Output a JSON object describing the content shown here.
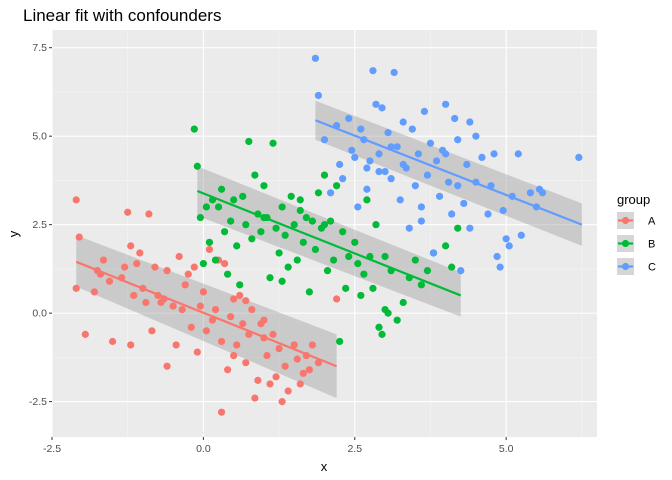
{
  "chart_data": {
    "type": "scatter",
    "title": "Linear fit with confounders",
    "xlabel": "x",
    "ylabel": "y",
    "xlim": [
      -2.5,
      6.5
    ],
    "ylim": [
      -3.5,
      8.0
    ],
    "xticks": [
      -2.5,
      0.0,
      2.5,
      5.0
    ],
    "xtick_labels": [
      "-2.5",
      "0.0",
      "2.5",
      "5.0"
    ],
    "yticks": [
      -2.5,
      0.0,
      2.5,
      5.0,
      7.5
    ],
    "ytick_labels": [
      "-2.5",
      "0.0",
      "2.5",
      "5.0",
      "7.5"
    ],
    "grid": true,
    "legend": {
      "title": "group",
      "position": "right"
    },
    "series": [
      {
        "name": "A",
        "color": "#F8766D",
        "fit": {
          "x": [
            -2.1,
            2.2
          ],
          "y": [
            1.45,
            -1.5
          ],
          "se_low": [
            0.75,
            -2.4
          ],
          "se_high": [
            2.2,
            -0.6
          ]
        },
        "points": [
          [
            -2.1,
            3.2
          ],
          [
            -2.05,
            2.15
          ],
          [
            -2.1,
            0.7
          ],
          [
            -1.95,
            -0.6
          ],
          [
            -1.8,
            0.6
          ],
          [
            -1.75,
            1.2
          ],
          [
            -1.7,
            1.1
          ],
          [
            -1.65,
            1.5
          ],
          [
            -1.55,
            0.9
          ],
          [
            -1.5,
            -0.8
          ],
          [
            -1.35,
            1.0
          ],
          [
            -1.3,
            1.3
          ],
          [
            -1.25,
            2.85
          ],
          [
            -1.2,
            1.9
          ],
          [
            -1.15,
            0.5
          ],
          [
            -1.1,
            1.4
          ],
          [
            -1.05,
            1.7
          ],
          [
            -1.0,
            0.7
          ],
          [
            -0.95,
            0.3
          ],
          [
            -0.9,
            2.8
          ],
          [
            -0.85,
            -0.5
          ],
          [
            -0.8,
            1.3
          ],
          [
            -0.75,
            0.5
          ],
          [
            -0.7,
            0.3
          ],
          [
            -0.65,
            0.4
          ],
          [
            -0.6,
            1.2
          ],
          [
            -0.5,
            0.2
          ],
          [
            -0.45,
            -0.9
          ],
          [
            -0.4,
            1.6
          ],
          [
            -0.35,
            0.1
          ],
          [
            -0.3,
            0.8
          ],
          [
            -0.25,
            1.1
          ],
          [
            -0.2,
            -0.4
          ],
          [
            -0.15,
            1.3
          ],
          [
            -0.1,
            -1.1
          ],
          [
            -0.05,
            0.2
          ],
          [
            0.0,
            0.6
          ],
          [
            0.05,
            -0.5
          ],
          [
            0.1,
            1.8
          ],
          [
            0.15,
            -0.2
          ],
          [
            0.2,
            0.1
          ],
          [
            0.25,
            1.5
          ],
          [
            0.3,
            -0.8
          ],
          [
            0.35,
            1.4
          ],
          [
            0.4,
            -1.6
          ],
          [
            0.45,
            -0.1
          ],
          [
            0.5,
            0.4
          ],
          [
            0.55,
            -0.9
          ],
          [
            0.6,
            0.5
          ],
          [
            0.65,
            -0.3
          ],
          [
            0.7,
            -1.4
          ],
          [
            0.75,
            -0.6
          ],
          [
            0.8,
            0.1
          ],
          [
            0.85,
            -2.4
          ],
          [
            0.9,
            -1.9
          ],
          [
            0.95,
            -0.3
          ],
          [
            1.0,
            -0.7
          ],
          [
            1.05,
            -1.2
          ],
          [
            1.1,
            -2.0
          ],
          [
            1.15,
            -0.6
          ],
          [
            1.2,
            -1.8
          ],
          [
            1.25,
            -1.0
          ],
          [
            1.3,
            -2.5
          ],
          [
            1.35,
            -1.5
          ],
          [
            1.4,
            -2.2
          ],
          [
            1.5,
            -0.9
          ],
          [
            1.55,
            -1.3
          ],
          [
            1.6,
            -2.0
          ],
          [
            1.65,
            -1.7
          ],
          [
            1.7,
            -1.2
          ],
          [
            1.75,
            -1.6
          ],
          [
            1.8,
            -0.9
          ],
          [
            1.9,
            -1.4
          ],
          [
            2.2,
            0.4
          ],
          [
            0.3,
            -2.8
          ],
          [
            -0.6,
            -1.5
          ],
          [
            -1.2,
            -0.9
          ],
          [
            0.5,
            -1.2
          ],
          [
            0.7,
            0.35
          ],
          [
            1.0,
            -0.2
          ]
        ]
      },
      {
        "name": "B",
        "color": "#00BA38",
        "fit": {
          "x": [
            -0.1,
            4.25
          ],
          "y": [
            3.45,
            0.5
          ],
          "se_low": [
            2.75,
            -0.1
          ],
          "se_high": [
            4.15,
            1.15
          ]
        },
        "points": [
          [
            -0.15,
            5.2
          ],
          [
            -0.1,
            4.15
          ],
          [
            -0.05,
            2.7
          ],
          [
            0.0,
            1.4
          ],
          [
            0.05,
            3.0
          ],
          [
            0.1,
            2.0
          ],
          [
            0.15,
            3.2
          ],
          [
            0.2,
            1.5
          ],
          [
            0.25,
            3.0
          ],
          [
            0.3,
            3.5
          ],
          [
            0.35,
            2.3
          ],
          [
            0.4,
            1.1
          ],
          [
            0.45,
            2.6
          ],
          [
            0.5,
            3.2
          ],
          [
            0.55,
            1.9
          ],
          [
            0.6,
            0.8
          ],
          [
            0.65,
            3.3
          ],
          [
            0.7,
            2.5
          ],
          [
            0.75,
            4.85
          ],
          [
            0.8,
            2.1
          ],
          [
            0.85,
            3.9
          ],
          [
            0.9,
            2.8
          ],
          [
            0.95,
            2.3
          ],
          [
            1.0,
            3.6
          ],
          [
            1.05,
            2.7
          ],
          [
            1.1,
            1.0
          ],
          [
            1.15,
            4.8
          ],
          [
            1.2,
            2.4
          ],
          [
            1.25,
            1.7
          ],
          [
            1.3,
            3.0
          ],
          [
            1.35,
            2.2
          ],
          [
            1.4,
            1.3
          ],
          [
            1.45,
            3.3
          ],
          [
            1.5,
            2.5
          ],
          [
            1.55,
            1.5
          ],
          [
            1.6,
            3.2
          ],
          [
            1.65,
            2.0
          ],
          [
            1.7,
            2.7
          ],
          [
            1.75,
            0.6
          ],
          [
            1.8,
            2.6
          ],
          [
            1.85,
            1.8
          ],
          [
            1.9,
            3.4
          ],
          [
            1.95,
            2.4
          ],
          [
            2.0,
            3.9
          ],
          [
            2.05,
            1.2
          ],
          [
            2.1,
            2.6
          ],
          [
            2.15,
            1.5
          ],
          [
            2.2,
            3.6
          ],
          [
            2.25,
            -0.8
          ],
          [
            2.3,
            2.3
          ],
          [
            2.35,
            0.7
          ],
          [
            2.4,
            1.6
          ],
          [
            2.5,
            2.0
          ],
          [
            2.55,
            1.4
          ],
          [
            2.6,
            0.5
          ],
          [
            2.65,
            1.1
          ],
          [
            2.7,
            3.2
          ],
          [
            2.75,
            1.6
          ],
          [
            2.8,
            0.7
          ],
          [
            2.85,
            2.5
          ],
          [
            2.9,
            -0.4
          ],
          [
            2.95,
            -0.6
          ],
          [
            3.0,
            0.1
          ],
          [
            3.05,
            0.0
          ],
          [
            3.1,
            1.2
          ],
          [
            3.2,
            -0.2
          ],
          [
            3.3,
            0.3
          ],
          [
            3.4,
            1.0
          ],
          [
            3.5,
            1.5
          ],
          [
            3.6,
            0.8
          ],
          [
            3.7,
            1.2
          ],
          [
            3.8,
            1.7
          ],
          [
            4.0,
            1.9
          ],
          [
            4.1,
            1.3
          ],
          [
            4.2,
            2.4
          ],
          [
            1.0,
            2.7
          ],
          [
            1.3,
            0.9
          ],
          [
            2.0,
            2.5
          ],
          [
            3.0,
            1.6
          ],
          [
            1.6,
            2.9
          ]
        ]
      },
      {
        "name": "C",
        "color": "#619CFF",
        "fit": {
          "x": [
            1.85,
            6.25
          ],
          "y": [
            5.45,
            2.5
          ],
          "se_low": [
            4.9,
            1.9
          ],
          "se_high": [
            6.0,
            3.1
          ]
        },
        "points": [
          [
            1.85,
            7.2
          ],
          [
            1.9,
            6.15
          ],
          [
            2.0,
            4.9
          ],
          [
            2.1,
            3.4
          ],
          [
            2.2,
            5.3
          ],
          [
            2.25,
            4.2
          ],
          [
            2.3,
            3.8
          ],
          [
            2.4,
            5.5
          ],
          [
            2.45,
            4.6
          ],
          [
            2.5,
            4.4
          ],
          [
            2.55,
            3.0
          ],
          [
            2.6,
            5.2
          ],
          [
            2.65,
            4.9
          ],
          [
            2.7,
            3.5
          ],
          [
            2.75,
            4.3
          ],
          [
            2.8,
            6.85
          ],
          [
            2.85,
            5.9
          ],
          [
            2.9,
            4.5
          ],
          [
            2.95,
            5.8
          ],
          [
            3.0,
            4.0
          ],
          [
            3.05,
            5.1
          ],
          [
            3.1,
            3.8
          ],
          [
            3.15,
            6.8
          ],
          [
            3.2,
            4.7
          ],
          [
            3.25,
            3.2
          ],
          [
            3.3,
            5.4
          ],
          [
            3.35,
            4.1
          ],
          [
            3.4,
            2.4
          ],
          [
            3.45,
            5.2
          ],
          [
            3.5,
            3.6
          ],
          [
            3.55,
            4.5
          ],
          [
            3.6,
            2.6
          ],
          [
            3.65,
            5.7
          ],
          [
            3.7,
            3.9
          ],
          [
            3.75,
            4.8
          ],
          [
            3.8,
            1.7
          ],
          [
            3.85,
            4.3
          ],
          [
            3.9,
            3.3
          ],
          [
            3.95,
            4.6
          ],
          [
            4.0,
            5.9
          ],
          [
            4.05,
            3.7
          ],
          [
            4.1,
            2.8
          ],
          [
            4.15,
            5.5
          ],
          [
            4.2,
            4.9
          ],
          [
            4.25,
            1.2
          ],
          [
            4.3,
            3.1
          ],
          [
            4.35,
            4.2
          ],
          [
            4.4,
            2.4
          ],
          [
            4.5,
            3.7
          ],
          [
            4.6,
            4.4
          ],
          [
            4.7,
            2.8
          ],
          [
            4.75,
            3.6
          ],
          [
            4.8,
            4.5
          ],
          [
            4.85,
            1.6
          ],
          [
            4.9,
            1.3
          ],
          [
            4.95,
            2.9
          ],
          [
            5.0,
            2.1
          ],
          [
            5.05,
            1.9
          ],
          [
            5.1,
            3.3
          ],
          [
            5.2,
            4.5
          ],
          [
            5.25,
            2.2
          ],
          [
            5.4,
            3.4
          ],
          [
            5.5,
            3.0
          ],
          [
            5.55,
            3.5
          ],
          [
            5.6,
            3.4
          ],
          [
            6.2,
            4.4
          ],
          [
            4.4,
            5.4
          ],
          [
            3.3,
            4.2
          ],
          [
            2.9,
            4.0
          ],
          [
            4.0,
            4.5
          ],
          [
            3.6,
            3.0
          ],
          [
            2.7,
            4.1
          ],
          [
            4.5,
            5.0
          ],
          [
            3.1,
            4.7
          ],
          [
            4.2,
            3.6
          ]
        ]
      }
    ]
  }
}
